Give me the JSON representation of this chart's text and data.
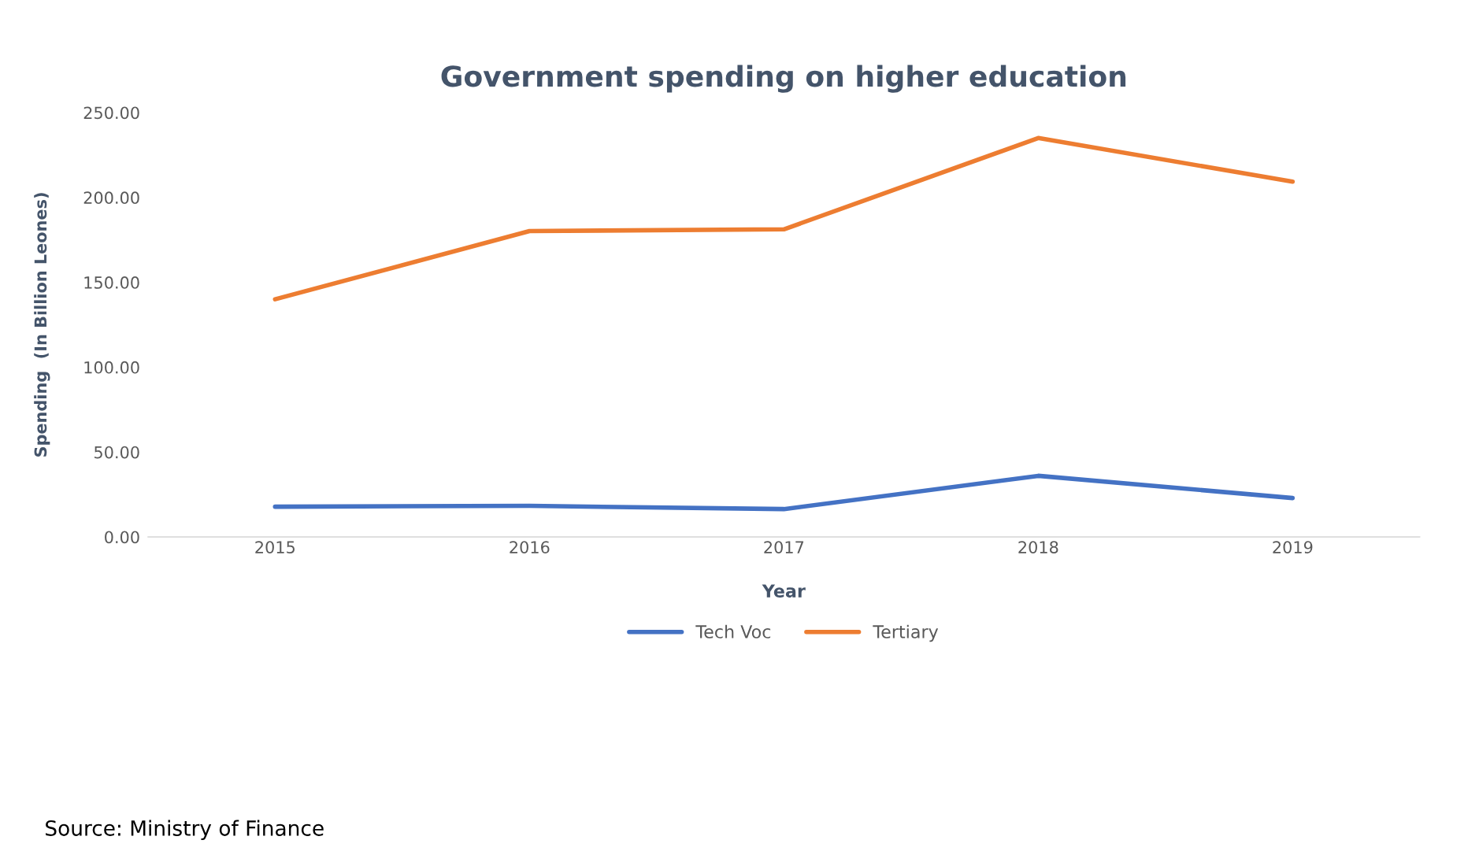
{
  "chart_data": {
    "type": "line",
    "title": "Government spending on higher education",
    "xlabel": "Year",
    "ylabel": "Spending  (In Billion Leones)",
    "categories": [
      "2015",
      "2016",
      "2017",
      "2018",
      "2019"
    ],
    "series": [
      {
        "name": "Tech Voc",
        "color": "#4472c4",
        "values": [
          17.8,
          18.3,
          16.4,
          36.0,
          22.9
        ]
      },
      {
        "name": "Tertiary",
        "color": "#ed7d31",
        "values": [
          140.0,
          180.2,
          181.2,
          235.0,
          209.3
        ]
      }
    ],
    "ylim": [
      0,
      250
    ],
    "yticks": [
      {
        "value": 0,
        "label": "0.00"
      },
      {
        "value": 50,
        "label": "50.00"
      },
      {
        "value": 100,
        "label": "100.00"
      },
      {
        "value": 150,
        "label": "150.00"
      },
      {
        "value": 200,
        "label": "200.00"
      },
      {
        "value": 250,
        "label": "250.00"
      }
    ],
    "grid": false,
    "legend": "bottom",
    "marker": "none",
    "line_style": "solid",
    "annotations": [
      "Source: Ministry of Finance"
    ]
  }
}
